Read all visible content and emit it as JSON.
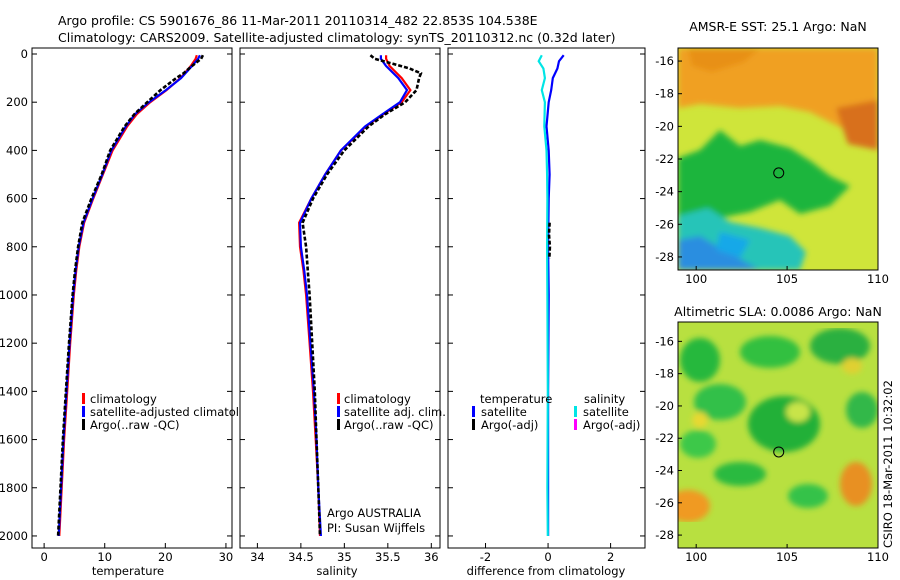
{
  "header": {
    "title_line1": "Argo profile: CS 5901676_86 11-Mar-2011 20110314_482 22.853S 104.538E",
    "title_line2": "Climatology: CARS2009. Satellite-adjusted climatology: synTS_20110312.nc (0.32d later)"
  },
  "colors": {
    "climatology": "#ff0000",
    "satellite": "#0000ff",
    "argo": "#000000",
    "salinity_satellite": "#00e5e5",
    "salinity_argo": "#ff00ff"
  },
  "chart_data": [
    {
      "type": "line",
      "id": "temperature",
      "xlabel": "temperature",
      "xlim": [
        -2,
        31
      ],
      "ylim": [
        2050,
        0
      ],
      "xticks": [
        0,
        10,
        20,
        30
      ],
      "yticks": [
        0,
        200,
        400,
        600,
        800,
        1000,
        1200,
        1400,
        1600,
        1800,
        2000
      ],
      "legend": [
        "climatology",
        "satellite-adjusted climatology",
        "Argo(..raw -QC)"
      ],
      "series": [
        {
          "name": "climatology",
          "depth": [
            5,
            20,
            50,
            100,
            150,
            200,
            250,
            300,
            400,
            500,
            600,
            700,
            800,
            900,
            1000,
            1200,
            1400,
            1600,
            1800,
            2000
          ],
          "values": [
            25.2,
            25.0,
            24.2,
            22.5,
            20.2,
            17.5,
            15.3,
            13.7,
            11.3,
            9.7,
            8.1,
            6.6,
            5.8,
            5.3,
            4.9,
            4.3,
            3.8,
            3.3,
            2.9,
            2.5
          ]
        },
        {
          "name": "satellite-adjusted climatology",
          "depth": [
            5,
            20,
            50,
            100,
            150,
            200,
            250,
            300,
            400,
            500,
            600,
            700,
            800,
            900,
            1000,
            1200,
            1400,
            1600,
            1800,
            2000
          ],
          "values": [
            25.7,
            25.4,
            24.4,
            22.6,
            20.1,
            17.3,
            15.0,
            13.5,
            11.1,
            9.6,
            8.0,
            6.5,
            5.7,
            5.2,
            4.8,
            4.2,
            3.7,
            3.2,
            2.8,
            2.4
          ]
        },
        {
          "name": "Argo(..raw -QC)",
          "depth": [
            5,
            20,
            50,
            80,
            100,
            150,
            200,
            250,
            300,
            400,
            500,
            600,
            700,
            800,
            900,
            1000,
            1200,
            1400,
            1600,
            1800,
            2000
          ],
          "values": [
            26.2,
            25.9,
            24.4,
            23.0,
            21.8,
            19.2,
            17.0,
            14.9,
            13.3,
            10.9,
            9.5,
            7.8,
            6.3,
            5.6,
            5.1,
            4.7,
            4.1,
            3.6,
            3.1,
            2.7,
            2.3
          ]
        }
      ]
    },
    {
      "type": "line",
      "id": "salinity",
      "xlabel": "salinity",
      "xlim": [
        33.8,
        36.1
      ],
      "ylim": [
        2050,
        0
      ],
      "xticks": [
        34,
        34.5,
        35,
        35.5,
        36
      ],
      "legend": [
        "climatology",
        "satellite adj. clim.",
        "Argo(..raw -QC)"
      ],
      "annotation_line1": "Argo AUSTRALIA",
      "annotation_line2": "PI: Susan Wijffels",
      "series": [
        {
          "name": "climatology",
          "depth": [
            5,
            20,
            50,
            100,
            150,
            200,
            250,
            300,
            400,
            500,
            600,
            700,
            800,
            900,
            1000,
            1200,
            1400,
            1600,
            1800,
            2000
          ],
          "values": [
            35.48,
            35.48,
            35.52,
            35.66,
            35.76,
            35.66,
            35.45,
            35.25,
            34.96,
            34.78,
            34.62,
            34.48,
            34.49,
            34.53,
            34.56,
            34.6,
            34.64,
            34.67,
            34.7,
            34.72
          ]
        },
        {
          "name": "satellite adj. clim.",
          "depth": [
            5,
            20,
            50,
            100,
            150,
            200,
            250,
            300,
            400,
            500,
            600,
            700,
            800,
            900,
            1000,
            1200,
            1400,
            1600,
            1800,
            2000
          ],
          "values": [
            35.42,
            35.42,
            35.48,
            35.62,
            35.72,
            35.64,
            35.44,
            35.24,
            34.96,
            34.78,
            34.62,
            34.49,
            34.5,
            34.54,
            34.57,
            34.61,
            34.65,
            34.68,
            34.7,
            34.73
          ]
        },
        {
          "name": "Argo(..raw -QC)",
          "depth": [
            5,
            20,
            40,
            60,
            80,
            100,
            150,
            200,
            250,
            300,
            400,
            500,
            600,
            700,
            750,
            800,
            900,
            1000,
            1200,
            1400,
            1600,
            1800,
            2000
          ],
          "values": [
            35.3,
            35.35,
            35.55,
            35.75,
            35.88,
            35.86,
            35.83,
            35.7,
            35.47,
            35.28,
            35.0,
            34.8,
            34.64,
            34.52,
            34.54,
            34.56,
            34.58,
            34.6,
            34.63,
            34.66,
            34.68,
            34.7,
            34.72
          ]
        }
      ]
    },
    {
      "type": "line",
      "id": "difference",
      "xlabel": "difference from climatology",
      "xlim": [
        -3.2,
        3.1
      ],
      "ylim": [
        2050,
        0
      ],
      "xticks": [
        -2,
        0,
        2
      ],
      "legend_col1_title": "temperature",
      "legend_col2_title": "salinity",
      "legend": [
        "satellite",
        "Argo(-adj)",
        "satellite",
        "Argo(-adj)"
      ],
      "series": [
        {
          "name": "temperature satellite",
          "depth": [
            5,
            30,
            60,
            100,
            150,
            200,
            300,
            400,
            500,
            600,
            800,
            1000,
            1400,
            1800,
            2000
          ],
          "values": [
            0.5,
            0.35,
            0.3,
            0.15,
            0.1,
            0.02,
            -0.05,
            0.02,
            0.05,
            0.02,
            0.0,
            0.02,
            0.0,
            0.0,
            0.0
          ]
        },
        {
          "name": "salinity satellite",
          "depth": [
            5,
            30,
            60,
            100,
            150,
            200,
            300,
            400,
            500,
            600,
            800,
            1000,
            1400,
            1800,
            2000
          ],
          "values": [
            -0.2,
            -0.3,
            -0.15,
            -0.1,
            -0.2,
            -0.1,
            -0.12,
            -0.05,
            -0.03,
            -0.02,
            -0.03,
            -0.02,
            -0.01,
            -0.02,
            -0.01
          ]
        },
        {
          "name": "temperature Argo(-adj)",
          "depth": [
            700,
            750,
            800,
            850
          ],
          "values": [
            0.05,
            0.03,
            0.06,
            0.04
          ]
        }
      ]
    },
    {
      "type": "heatmap",
      "id": "sst-map",
      "title": "AMSR-E SST: 25.1 Argo: NaN",
      "xlim": [
        99,
        110
      ],
      "ylim": [
        -28.8,
        -15.2
      ],
      "xticks": [
        100,
        105,
        110
      ],
      "yticks": [
        -16,
        -18,
        -20,
        -22,
        -24,
        -26,
        -28
      ],
      "marker_point": [
        104.54,
        -22.85
      ]
    },
    {
      "type": "heatmap",
      "id": "sla-map",
      "title": "Altimetric SLA: 0.0086 Argo: NaN",
      "xlim": [
        99,
        110
      ],
      "ylim": [
        -28.8,
        -14.8
      ],
      "xticks": [
        100,
        105,
        110
      ],
      "yticks": [
        -16,
        -18,
        -20,
        -22,
        -24,
        -26,
        -28
      ],
      "marker_point": [
        104.54,
        -22.85
      ]
    }
  ],
  "side_label": "CSIRO 18-Mar-2011 10:32:02"
}
